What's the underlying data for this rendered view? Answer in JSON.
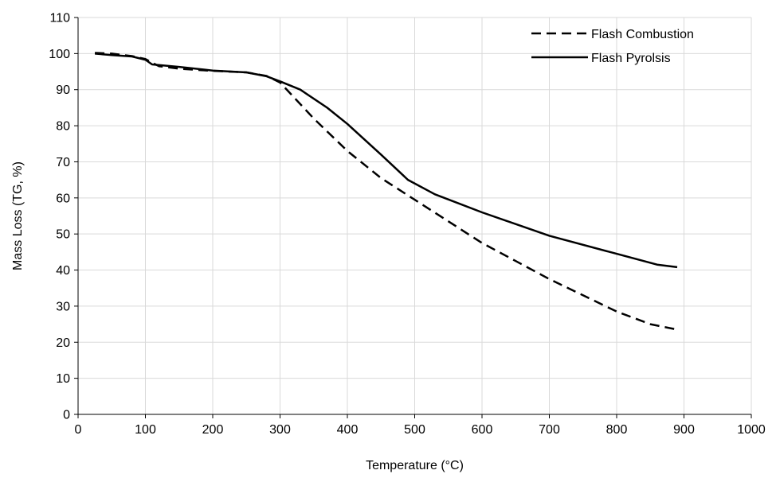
{
  "chart_data": {
    "type": "line",
    "title": "",
    "xlabel": "Temperature (°C)",
    "ylabel": "Mass Loss (TG, %)",
    "xlim": [
      0,
      1000
    ],
    "ylim": [
      0,
      110
    ],
    "xticks": [
      0,
      100,
      200,
      300,
      400,
      500,
      600,
      700,
      800,
      900,
      1000
    ],
    "yticks": [
      0,
      10,
      20,
      30,
      40,
      50,
      60,
      70,
      80,
      90,
      100,
      110
    ],
    "grid": true,
    "legend_position": "top-right",
    "series": [
      {
        "name": "Flash Combustion",
        "style": "dashed",
        "color": "#000000",
        "x": [
          25,
          50,
          80,
          100,
          120,
          150,
          200,
          250,
          280,
          300,
          350,
          400,
          450,
          500,
          550,
          600,
          650,
          700,
          750,
          800,
          850,
          890
        ],
        "y": [
          100.2,
          100,
          99.3,
          98.5,
          96.5,
          95.8,
          95.2,
          94.8,
          93.8,
          92,
          82,
          73,
          65.5,
          59.5,
          53.5,
          47.5,
          42.5,
          37.5,
          33,
          28.5,
          25,
          23.5
        ]
      },
      {
        "name": "Flash Pyrolsis",
        "style": "solid",
        "color": "#000000",
        "x": [
          25,
          50,
          80,
          100,
          110,
          150,
          200,
          250,
          280,
          300,
          330,
          370,
          400,
          450,
          490,
          530,
          600,
          700,
          800,
          860,
          890
        ],
        "y": [
          100,
          99.6,
          99.2,
          98.3,
          97,
          96.3,
          95.3,
          94.8,
          93.7,
          92.3,
          90,
          85,
          80.5,
          72,
          65,
          61,
          56,
          49.5,
          44.5,
          41.5,
          40.8
        ]
      }
    ]
  }
}
